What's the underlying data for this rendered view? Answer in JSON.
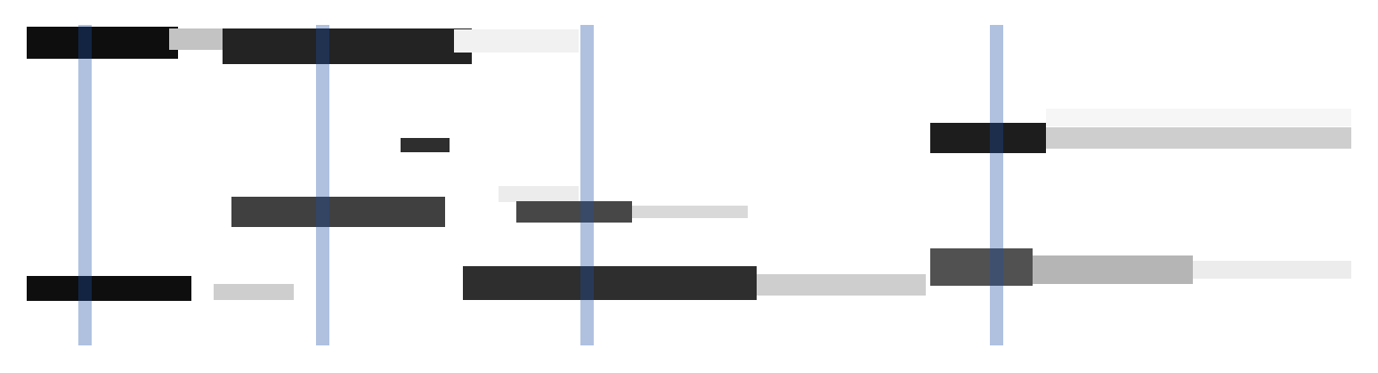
{
  "chart_data": {
    "type": "segments",
    "xlim": [
      0,
      1488
    ],
    "ylim": [
      360,
      0
    ],
    "tick_labels": false,
    "grid": false,
    "value_range": [
      0,
      1
    ],
    "segments": [
      {
        "x0": 0,
        "x1": 170,
        "y": 20,
        "height": 36,
        "value": 0.95
      },
      {
        "x0": 160,
        "x1": 240,
        "y": 16,
        "height": 24,
        "value": 0.35
      },
      {
        "x0": 220,
        "x1": 500,
        "y": 24,
        "height": 40,
        "value": 0.88
      },
      {
        "x0": 480,
        "x1": 620,
        "y": 18,
        "height": 26,
        "value": 0.12
      },
      {
        "x0": 420,
        "x1": 475,
        "y": 135,
        "height": 16,
        "value": 0.85
      },
      {
        "x0": 1015,
        "x1": 1145,
        "y": 127,
        "height": 34,
        "value": 0.9
      },
      {
        "x0": 1145,
        "x1": 1488,
        "y": 127,
        "height": 24,
        "value": 0.3
      },
      {
        "x0": 1145,
        "x1": 1488,
        "y": 104,
        "height": 20,
        "value": 0.08
      },
      {
        "x0": 230,
        "x1": 470,
        "y": 210,
        "height": 34,
        "value": 0.8
      },
      {
        "x0": 530,
        "x1": 620,
        "y": 190,
        "height": 18,
        "value": 0.15
      },
      {
        "x0": 550,
        "x1": 680,
        "y": 210,
        "height": 24,
        "value": 0.78
      },
      {
        "x0": 680,
        "x1": 810,
        "y": 210,
        "height": 14,
        "value": 0.25
      },
      {
        "x0": 0,
        "x1": 185,
        "y": 296,
        "height": 28,
        "value": 0.95
      },
      {
        "x0": 210,
        "x1": 300,
        "y": 300,
        "height": 18,
        "value": 0.3
      },
      {
        "x0": 490,
        "x1": 820,
        "y": 290,
        "height": 38,
        "value": 0.85
      },
      {
        "x0": 820,
        "x1": 1010,
        "y": 292,
        "height": 24,
        "value": 0.3
      },
      {
        "x0": 1015,
        "x1": 1130,
        "y": 272,
        "height": 42,
        "value": 0.75
      },
      {
        "x0": 1130,
        "x1": 1310,
        "y": 275,
        "height": 32,
        "value": 0.4
      },
      {
        "x0": 1310,
        "x1": 1488,
        "y": 275,
        "height": 20,
        "value": 0.15
      }
    ],
    "markers": {
      "x": [
        65,
        332,
        629,
        1089
      ],
      "width": 15,
      "color": "#1f4fa8"
    }
  }
}
